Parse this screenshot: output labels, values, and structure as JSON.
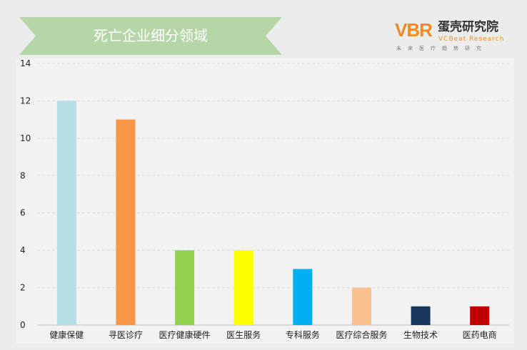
{
  "header": {
    "title": "死亡企业细分领域"
  },
  "logo": {
    "mark": "VBR",
    "name": "蛋壳研究院",
    "english": "VCBeat Research",
    "tagline": "未来医疗趋势研究"
  },
  "chart_data": {
    "type": "bar",
    "title": "死亡企业细分领域",
    "categories": [
      "健康保健",
      "寻医诊疗",
      "医疗健康硬件",
      "医生服务",
      "专科服务",
      "医疗综合服务",
      "生物技术",
      "医药电商"
    ],
    "values": [
      12,
      11,
      4,
      4,
      3,
      2,
      1,
      1
    ],
    "colors": [
      "#b7dde6",
      "#f79646",
      "#92d050",
      "#ffff00",
      "#00b0f0",
      "#fac090",
      "#17375e",
      "#c00000"
    ],
    "yticks": [
      0,
      2,
      4,
      6,
      8,
      10,
      12,
      14
    ],
    "ylim": [
      0,
      14
    ],
    "grid": true,
    "xlabel": "",
    "ylabel": ""
  }
}
